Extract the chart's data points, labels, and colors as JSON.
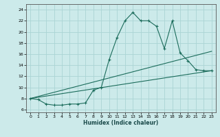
{
  "title": "",
  "xlabel": "Humidex (Indice chaleur)",
  "bg_color": "#cceaea",
  "grid_color": "#aad4d4",
  "line_color": "#1a6b5a",
  "xlim": [
    -0.5,
    23.5
  ],
  "ylim": [
    5.5,
    25.0
  ],
  "xticks": [
    0,
    1,
    2,
    3,
    4,
    5,
    6,
    7,
    8,
    9,
    10,
    11,
    12,
    13,
    14,
    15,
    16,
    17,
    18,
    19,
    20,
    21,
    22,
    23
  ],
  "yticks": [
    6,
    8,
    10,
    12,
    14,
    16,
    18,
    20,
    22,
    24
  ],
  "line1_x": [
    0,
    1,
    2,
    3,
    4,
    5,
    6,
    7,
    8,
    9,
    10,
    11,
    12,
    13,
    14,
    15,
    16,
    17,
    18,
    19,
    20,
    21,
    22,
    23
  ],
  "line1_y": [
    8.0,
    7.8,
    7.0,
    6.8,
    6.8,
    7.0,
    7.0,
    7.2,
    9.5,
    10.0,
    15.0,
    19.0,
    22.0,
    23.5,
    22.0,
    22.0,
    21.0,
    17.0,
    22.0,
    16.2,
    14.8,
    13.2,
    13.0,
    13.0
  ],
  "line2_x": [
    0,
    23
  ],
  "line2_y": [
    8.0,
    13.0
  ],
  "line3_x": [
    0,
    23
  ],
  "line3_y": [
    8.0,
    16.5
  ]
}
